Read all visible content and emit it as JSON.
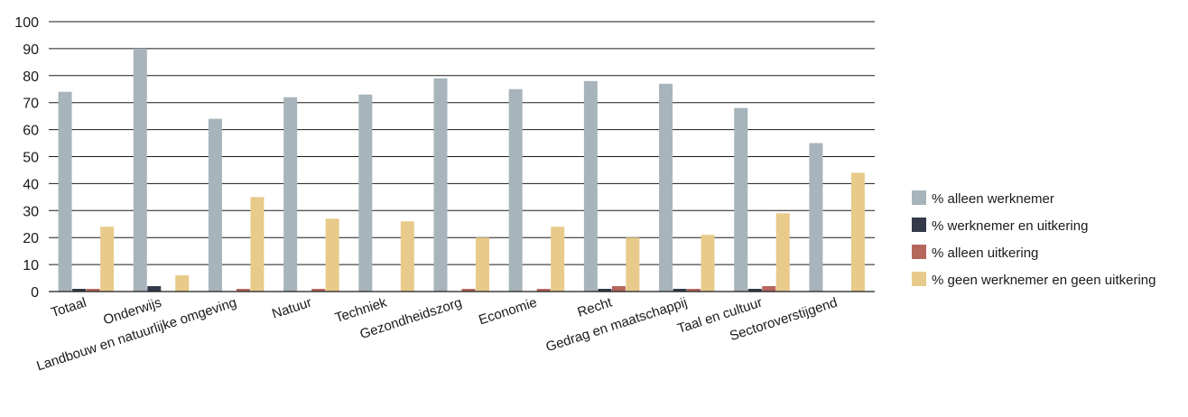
{
  "chart_data": {
    "type": "bar",
    "categories": [
      "Totaal",
      "Onderwijs",
      "Landbouw en natuurlijke omgeving",
      "Natuur",
      "Techniek",
      "Gezondheidszorg",
      "Economie",
      "Recht",
      "Gedrag en maatschappij",
      "Taal en cultuur",
      "Sectoroverstijgend"
    ],
    "series": [
      {
        "name": "% alleen werknemer",
        "color": "#a7b4bb",
        "values": [
          74,
          90,
          64,
          72,
          73,
          79,
          75,
          78,
          77,
          68,
          55
        ]
      },
      {
        "name": "% werknemer en uitkering",
        "color": "#343a4b",
        "values": [
          1,
          2,
          0,
          0,
          0,
          0,
          0,
          1,
          1,
          1,
          0
        ]
      },
      {
        "name": "% alleen uitkering",
        "color": "#b5675e",
        "values": [
          1,
          0,
          1,
          1,
          0,
          1,
          1,
          2,
          1,
          2,
          0
        ]
      },
      {
        "name": "% geen werknemer en geen uitkering",
        "color": "#e8ca8a",
        "values": [
          24,
          6,
          35,
          27,
          26,
          20,
          24,
          20,
          21,
          29,
          44
        ]
      }
    ],
    "ylim": [
      0,
      100
    ],
    "yticks": [
      0,
      10,
      20,
      30,
      40,
      50,
      60,
      70,
      80,
      90,
      100
    ],
    "grid": true,
    "legend_position": "right",
    "title": "",
    "xlabel": "",
    "ylabel": ""
  }
}
